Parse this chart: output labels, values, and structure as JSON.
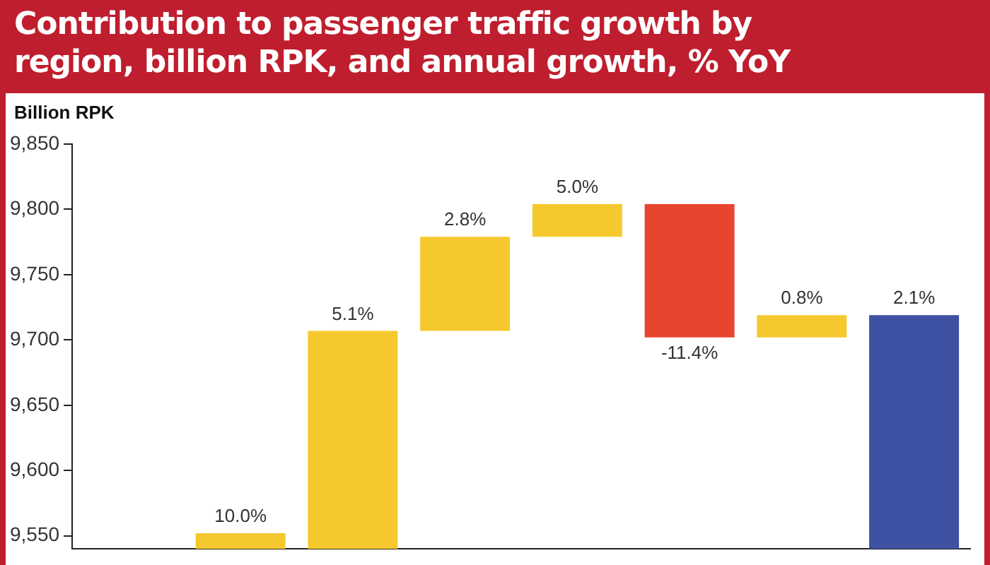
{
  "chart_data": {
    "type": "bar",
    "title": "Contribution to passenger traffic growth by region, billion RPK, and annual growth, % YoY",
    "ylabel": "Billion RPK",
    "categories": [
      null,
      null,
      null,
      null,
      null,
      null,
      null,
      null
    ],
    "values": [
      null,
      12,
      167,
      72,
      25,
      -102,
      17,
      179
    ],
    "base": [
      null,
      9540,
      9540,
      9707,
      9779,
      9804,
      9702,
      9540
    ],
    "colors": [
      "#f5c92e",
      "#f5c92e",
      "#f5c92e",
      "#f5c92e",
      "#f5c92e",
      "#e84530",
      "#f5c92e",
      "#3f51a3"
    ],
    "annotations": [
      {
        "text": "10.0%",
        "y": 9552
      },
      {
        "text": "5.1%",
        "y": 9707
      },
      {
        "text": "2.8%",
        "y": 9779
      },
      {
        "text": "5.0%",
        "y": 9804
      },
      {
        "text": "-11.4%",
        "y": 9702
      },
      {
        "text": "0.8%",
        "y": 9719
      },
      {
        "text": "2.1%",
        "y": 9719
      }
    ],
    "ylim": [
      9540,
      9850
    ],
    "yticks": [
      {
        "value": 9550,
        "label": "9,550"
      },
      {
        "value": 9600,
        "label": "9,600"
      },
      {
        "value": 9650,
        "label": "9,650"
      },
      {
        "value": 9700,
        "label": "9,700"
      },
      {
        "value": 9750,
        "label": "9,750"
      },
      {
        "value": 9800,
        "label": "9,800"
      },
      {
        "value": 9850,
        "label": "9,850"
      }
    ],
    "grid": false
  }
}
